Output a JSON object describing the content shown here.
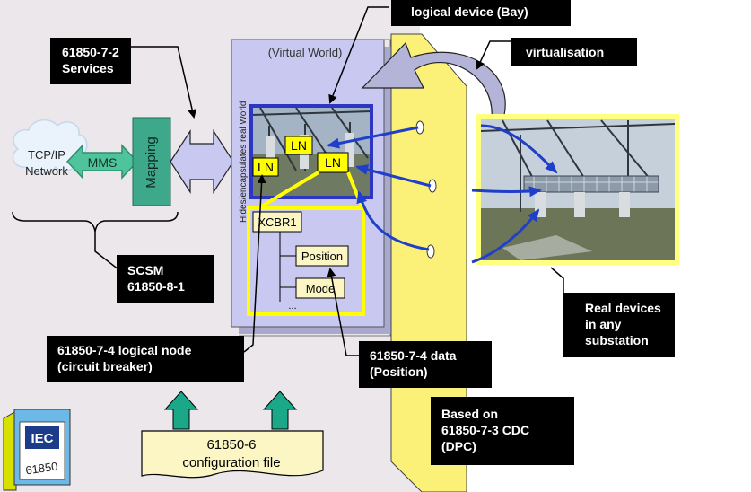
{
  "colors": {
    "left_background": "#ebe7ea",
    "virtual_world_fill": "#c8c8f0",
    "wall_yellow": "#fbf179",
    "ln_box_yellow": "#ffff00",
    "mapping_green": "#3da88a",
    "arrow_blue": "#1f3fcb",
    "label_black": "#000000"
  },
  "labels": {
    "logical_device": "logical device (Bay)",
    "virtualisation": "virtualisation",
    "services": "61850-7-2\nServices",
    "scsm": "SCSM\n61850-8-1",
    "logical_node": "61850-7-4 logical node\n(circuit breaker)",
    "data": "61850-7-4 data\n(Position)",
    "real_devices": "Real devices\nin any\nsubstation",
    "cdc": "Based on\n61850-7-3 CDC\n(DPC)"
  },
  "diagram": {
    "cloud_line1": "TCP/IP",
    "cloud_line2": "Network",
    "mms": "MMS",
    "mapping": "Mapping",
    "virtual_world": "(Virtual World)",
    "hides_text": "Hides/encapsulates real World",
    "ln": "LN",
    "xcbr": "XCBR1",
    "position": "Position",
    "mode": "Mode",
    "ellipsis": "...",
    "config_line1": "61850-6",
    "config_line2": "configuration file",
    "iec_logo": "IEC",
    "iec_number": "61850"
  }
}
